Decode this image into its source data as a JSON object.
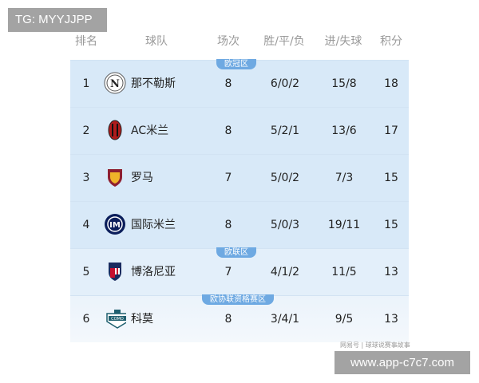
{
  "watermark_tg": "TG: MYYJJPP",
  "watermark_site": "www.app-c7c7.com",
  "source_credit": "网易号 | 球球说赛事故事",
  "colors": {
    "zone_ucl": "#d8e9f8",
    "zone_uel": "#e3effa",
    "zone_uecl": "#ebf3fb",
    "tag": "#6ea9e2"
  },
  "headers": {
    "rank": "排名",
    "team": "球队",
    "played": "场次",
    "wdl": "胜/平/负",
    "goals": "进/失球",
    "points": "积分"
  },
  "zones": {
    "ucl": "欧冠区",
    "uel": "欧联区",
    "uecl": "欧协联资格赛区"
  },
  "rows": [
    {
      "rank": "1",
      "team": "那不勒斯",
      "logo": "napoli-crest-icon",
      "played": "8",
      "wdl": "6/0/2",
      "goals": "15/8",
      "points": "18"
    },
    {
      "rank": "2",
      "team": "AC米兰",
      "logo": "ac-milan-crest-icon",
      "played": "8",
      "wdl": "5/2/1",
      "goals": "13/6",
      "points": "17"
    },
    {
      "rank": "3",
      "team": "罗马",
      "logo": "roma-crest-icon",
      "played": "7",
      "wdl": "5/0/2",
      "goals": "7/3",
      "points": "15"
    },
    {
      "rank": "4",
      "team": "国际米兰",
      "logo": "inter-crest-icon",
      "played": "8",
      "wdl": "5/0/3",
      "goals": "19/11",
      "points": "15"
    },
    {
      "rank": "5",
      "team": "博洛尼亚",
      "logo": "bologna-crest-icon",
      "played": "7",
      "wdl": "4/1/2",
      "goals": "11/5",
      "points": "13"
    },
    {
      "rank": "6",
      "team": "科莫",
      "logo": "como-crest-icon",
      "played": "8",
      "wdl": "3/4/1",
      "goals": "9/5",
      "points": "13"
    }
  ]
}
